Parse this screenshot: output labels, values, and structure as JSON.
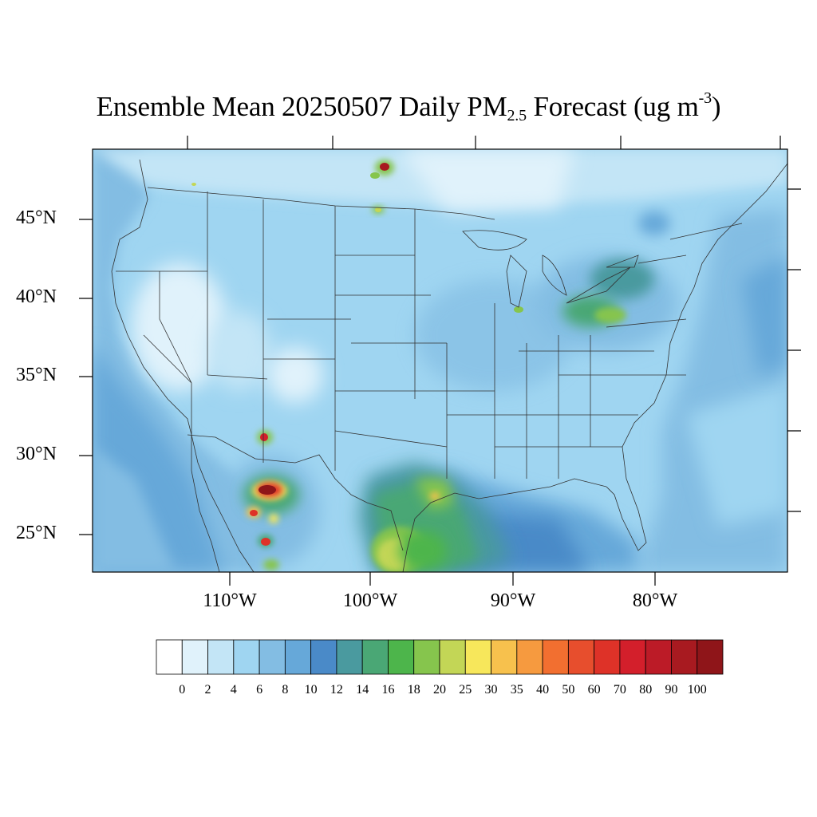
{
  "title": {
    "main": "Ensemble Mean 20250507 Daily PM",
    "subscript": "2.5",
    "after_subscript": " Forecast (ug m",
    "superscript": "-3",
    "close": ")"
  },
  "latitude_labels": [
    "45°N",
    "40°N",
    "35°N",
    "30°N",
    "25°N"
  ],
  "longitude_labels": [
    "110°W",
    "100°W",
    "90°W",
    "80°W"
  ],
  "colorbar": {
    "labels": [
      "0",
      "2",
      "4",
      "6",
      "8",
      "10",
      "12",
      "14",
      "16",
      "18",
      "20",
      "25",
      "30",
      "35",
      "40",
      "50",
      "60",
      "70",
      "80",
      "90",
      "100"
    ],
    "colors": [
      "#ffffff",
      "#e0f2fb",
      "#c3e5f6",
      "#9fd5f1",
      "#83bde3",
      "#66a8d9",
      "#4a8ac8",
      "#4a9a9f",
      "#4aa775",
      "#4db54b",
      "#86c54d",
      "#c3d656",
      "#f7e75b",
      "#f7c14d",
      "#f69a3f",
      "#f26f30",
      "#e74e2d",
      "#de3228",
      "#d31f2b",
      "#bc1b27",
      "#a81a20",
      "#8f1519"
    ]
  },
  "map_layers": {
    "background_level": "4-6",
    "ocean_gulf_level": "8-10",
    "hotspots": [
      "Chihuahua fires 70-100",
      "South Texas 18-25",
      "Gulf coast 16-18"
    ]
  }
}
